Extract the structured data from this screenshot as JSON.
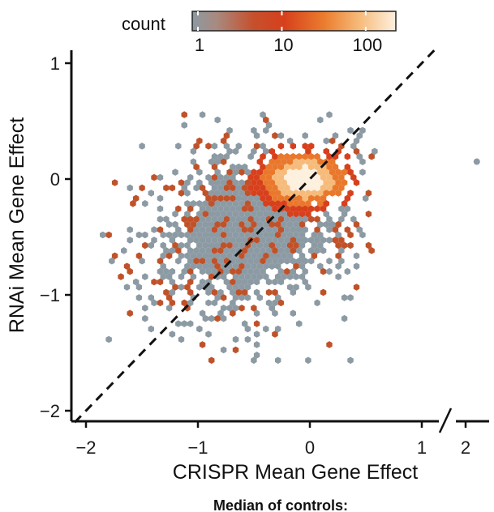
{
  "chart_data": {
    "type": "scatter",
    "style": "hexbin density",
    "title": "",
    "xlabel": "CRISPR Mean Gene Effect",
    "ylabel": "RNAi Mean Gene Effect",
    "xlim": [
      -2.15,
      1.25
    ],
    "ylim": [
      -2.1,
      1.15
    ],
    "x_ticks": [
      -2,
      -1,
      0,
      1
    ],
    "y_ticks": [
      -2,
      -1,
      0,
      1
    ],
    "x_axis_break": true,
    "x_break_tick": 2,
    "x_break_tick_label": "2",
    "tick_labels_x": [
      "−2",
      "−1",
      "0",
      "1",
      "2"
    ],
    "tick_labels_y": [
      "−2",
      "−1",
      "0",
      "1"
    ],
    "outlier_point": {
      "x": 2.1,
      "y": 0.15
    },
    "reference_line": {
      "type": "identity",
      "style": "dashed",
      "color": "#111111"
    },
    "density_summary": {
      "peak": {
        "x": -0.05,
        "y": 0.0
      },
      "core_spread": {
        "x": 0.22,
        "y": 0.14
      },
      "tail_toward": {
        "x": -1.0,
        "y": -0.8
      },
      "x_range": [
        -1.85,
        0.6
      ],
      "y_range": [
        -1.6,
        0.6
      ]
    },
    "legend": {
      "title": "count",
      "scale": "log",
      "ticks": [
        1,
        10,
        100
      ],
      "tick_labels": [
        "1",
        "10",
        "100"
      ],
      "colors": [
        "#8c9aa3",
        "#c0522a",
        "#d7401c",
        "#e9782c",
        "#f6bb7a",
        "#fdf0de"
      ],
      "placement": "top-center"
    },
    "grid": false,
    "footer_text": "Median of controls:"
  }
}
